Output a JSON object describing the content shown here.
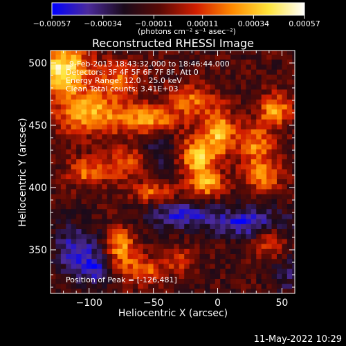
{
  "chart_data": {
    "type": "heatmap",
    "title": "Reconstructed RHESSI Image",
    "xlabel": "Heliocentric X (arcsec)",
    "ylabel": "Heliocentric Y (arcsec)",
    "xlim": [
      -130,
      60
    ],
    "ylim": [
      315,
      510
    ],
    "x_ticks": [
      -100,
      -50,
      0,
      50
    ],
    "x_tick_labels": [
      "−100",
      "−50",
      "0",
      "50"
    ],
    "y_ticks": [
      350,
      400,
      450,
      500
    ],
    "y_tick_labels": [
      "350",
      "400",
      "450",
      "500"
    ],
    "colorbar": {
      "ticks": [
        -0.00057,
        -0.00034,
        -0.00011,
        0.00011,
        0.00034,
        0.00057
      ],
      "tick_labels": [
        "−0.00057",
        "−0.00034",
        "−0.00011",
        "0.00011",
        "0.00034",
        "0.00057"
      ],
      "units_label": "(photons cm⁻² s⁻¹ asec⁻²)",
      "range": [
        -0.00057,
        0.00057
      ],
      "colors": [
        "#0000ff",
        "#4b2a9b",
        "#1a0a1a",
        "#5a0a05",
        "#d21e00",
        "#ff8a00",
        "#ffe43a",
        "#ffffff"
      ]
    },
    "annotations": [
      "9-Feb-2013 18:43:32.000 to 18:46:44.000",
      "Detectors: 3F 4F 5F 6F 7F 8F, Att 0",
      "Energy Range: 12.0 - 25.0 keV",
      "Clean    Total counts: 3.41E+03"
    ],
    "peak_label": "Position of Peak = [-126,481]",
    "blobs": [
      {
        "x": -120,
        "y": 495,
        "sx": 14,
        "sy": 14,
        "a": 0.0006
      },
      {
        "x": -100,
        "y": 460,
        "sx": 18,
        "sy": 12,
        "a": 0.00045
      },
      {
        "x": -75,
        "y": 488,
        "sx": 12,
        "sy": 10,
        "a": 0.00032
      },
      {
        "x": -55,
        "y": 455,
        "sx": 16,
        "sy": 8,
        "a": 0.0004
      },
      {
        "x": -20,
        "y": 470,
        "sx": 14,
        "sy": 10,
        "a": 0.0003
      },
      {
        "x": -15,
        "y": 425,
        "sx": 10,
        "sy": 12,
        "a": 0.00048
      },
      {
        "x": 2,
        "y": 445,
        "sx": 8,
        "sy": 12,
        "a": 0.00045
      },
      {
        "x": -8,
        "y": 403,
        "sx": 9,
        "sy": 7,
        "a": 0.0004
      },
      {
        "x": 30,
        "y": 435,
        "sx": 10,
        "sy": 12,
        "a": 0.00036
      },
      {
        "x": 35,
        "y": 410,
        "sx": 10,
        "sy": 8,
        "a": 0.00038
      },
      {
        "x": 45,
        "y": 463,
        "sx": 9,
        "sy": 9,
        "a": 0.0004
      },
      {
        "x": -100,
        "y": 413,
        "sx": 12,
        "sy": 8,
        "a": 0.00034
      },
      {
        "x": -70,
        "y": 420,
        "sx": 10,
        "sy": 10,
        "a": 0.00026
      },
      {
        "x": -50,
        "y": 396,
        "sx": 12,
        "sy": 6,
        "a": 0.0003
      },
      {
        "x": -75,
        "y": 352,
        "sx": 8,
        "sy": 12,
        "a": 0.0004
      },
      {
        "x": -58,
        "y": 333,
        "sx": 10,
        "sy": 8,
        "a": 0.00032
      },
      {
        "x": -30,
        "y": 342,
        "sx": 8,
        "sy": 8,
        "a": 0.00024
      },
      {
        "x": 40,
        "y": 358,
        "sx": 8,
        "sy": 10,
        "a": 0.00026
      },
      {
        "x": -110,
        "y": 350,
        "sx": 12,
        "sy": 14,
        "a": -0.00032
      },
      {
        "x": -30,
        "y": 378,
        "sx": 20,
        "sy": 8,
        "a": -0.0003
      },
      {
        "x": 25,
        "y": 372,
        "sx": 22,
        "sy": 8,
        "a": -0.00035
      },
      {
        "x": -45,
        "y": 430,
        "sx": 8,
        "sy": 10,
        "a": -0.0002
      },
      {
        "x": -95,
        "y": 335,
        "sx": 10,
        "sy": 8,
        "a": -0.00028
      },
      {
        "x": 55,
        "y": 330,
        "sx": 10,
        "sy": 10,
        "a": -0.00018
      }
    ],
    "background_level": -0.00013
  },
  "footer": {
    "timestamp": "11-May-2022 10:29"
  }
}
